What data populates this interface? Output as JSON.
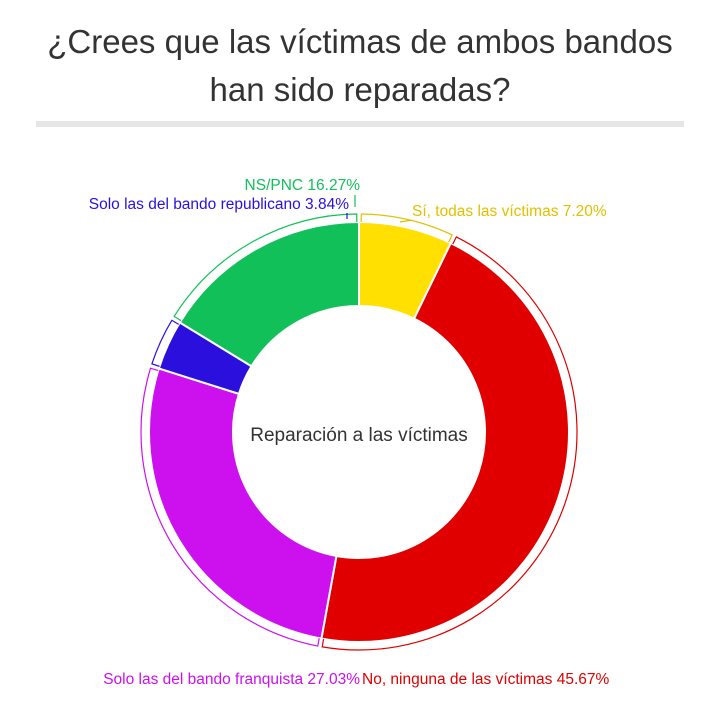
{
  "title": {
    "line1": "¿Crees que las víctimas de ambos bandos",
    "line2": "han sido reparadas?"
  },
  "chart_data": {
    "type": "pie",
    "center_label": "Reparación a las víctimas",
    "slices": [
      {
        "label": "Sí, todas las víctimas 7.20%",
        "value": 7.2,
        "color": "#ffe000"
      },
      {
        "label": "No, ninguna de las víctimas 45.67%",
        "value": 45.67,
        "color": "#e00000"
      },
      {
        "label": "Solo las del bando franquista 27.03%",
        "value": 27.03,
        "color": "#cc11ee"
      },
      {
        "label": "Solo las del bando republicano 3.84%",
        "value": 3.84,
        "color": "#2b10dd"
      },
      {
        "label": "NS/PNC 16.27%",
        "value": 16.27,
        "color": "#12c05a"
      }
    ],
    "label_colors": [
      "#e0c000",
      "#e00000",
      "#cc11ee",
      "#2b10dd",
      "#12c05a"
    ]
  }
}
